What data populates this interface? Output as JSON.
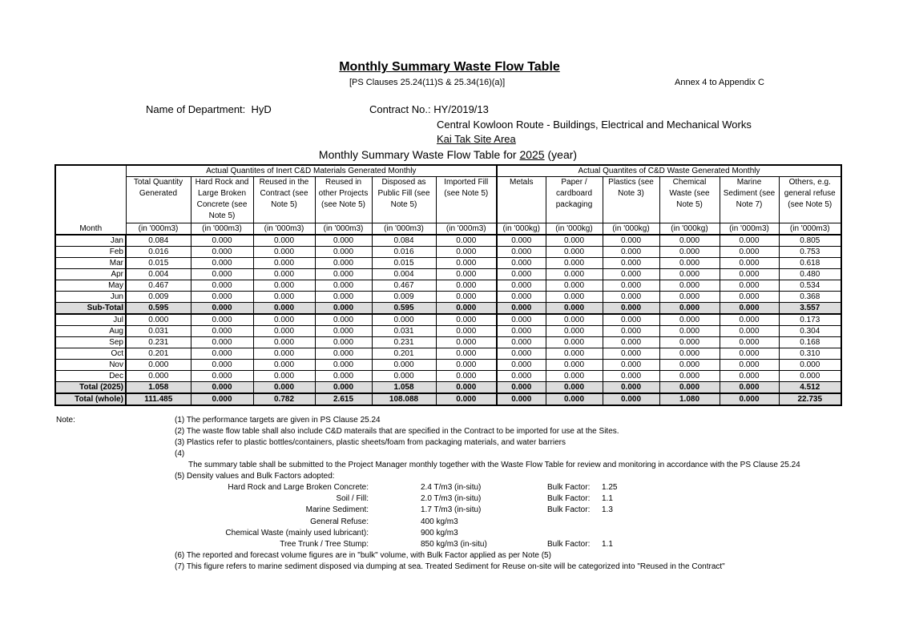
{
  "header": {
    "title": "Monthly Summary Waste Flow Table",
    "clauses": "[PS Clauses 25.24(11)S & 25.34(16)(a)]",
    "annex": "Annex 4 to Appendix C",
    "department_label": "Name of Department:",
    "department": "HyD",
    "contract_label": "Contract No.:",
    "contract_no": "HY/2019/13",
    "contract_name": "Central Kowloon Route - Buildings, Electrical and Mechanical Works",
    "site": "Kai Tak Site Area",
    "table_title_prefix": "Monthly Summary Waste Flow Table for",
    "year": "2025",
    "table_title_suffix": "(year)"
  },
  "table": {
    "group_inert": "Actual Quantites of Inert C&D Materials Generated Monthly",
    "group_waste": "Actual Quantites of C&D Waste Generated Monthly",
    "month_header": "Month",
    "columns": [
      {
        "label": "Total Quantity Generated",
        "unit": "(in '000m3)"
      },
      {
        "label": "Hard Rock and Large Broken Concrete (see Note 5)",
        "unit": "(in '000m3)"
      },
      {
        "label": "Reused in the Contract (see Note 5)",
        "unit": "(in '000m3)"
      },
      {
        "label": "Reused in other Projects (see Note 5)",
        "unit": "(in '000m3)"
      },
      {
        "label": "Disposed as Public Fill (see Note 5)",
        "unit": "(in '000m3)"
      },
      {
        "label": "Imported Fill (see Note 5)",
        "unit": "(in '000m3)"
      },
      {
        "label": "Metals",
        "unit": "(in '000kg)"
      },
      {
        "label": "Paper / cardboard packaging",
        "unit": "(in '000kg)"
      },
      {
        "label": "Plastics (see Note 3)",
        "unit": "(in '000kg)"
      },
      {
        "label": "Chemical Waste (see Note 5)",
        "unit": "(in '000kg)"
      },
      {
        "label": "Marine Sediment (see Note 7)",
        "unit": "(in '000m3)"
      },
      {
        "label": "Others, e.g. general refuse (see Note 5)",
        "unit": "(in '000m3)"
      }
    ],
    "rows": [
      {
        "month": "Jan",
        "values": [
          "0.084",
          "0.000",
          "0.000",
          "0.000",
          "0.084",
          "0.000",
          "0.000",
          "0.000",
          "0.000",
          "0.000",
          "0.000",
          "0.805"
        ]
      },
      {
        "month": "Feb",
        "values": [
          "0.016",
          "0.000",
          "0.000",
          "0.000",
          "0.016",
          "0.000",
          "0.000",
          "0.000",
          "0.000",
          "0.000",
          "0.000",
          "0.753"
        ]
      },
      {
        "month": "Mar",
        "values": [
          "0.015",
          "0.000",
          "0.000",
          "0.000",
          "0.015",
          "0.000",
          "0.000",
          "0.000",
          "0.000",
          "0.000",
          "0.000",
          "0.618"
        ]
      },
      {
        "month": "Apr",
        "values": [
          "0.004",
          "0.000",
          "0.000",
          "0.000",
          "0.004",
          "0.000",
          "0.000",
          "0.000",
          "0.000",
          "0.000",
          "0.000",
          "0.480"
        ]
      },
      {
        "month": "May",
        "values": [
          "0.467",
          "0.000",
          "0.000",
          "0.000",
          "0.467",
          "0.000",
          "0.000",
          "0.000",
          "0.000",
          "0.000",
          "0.000",
          "0.534"
        ]
      },
      {
        "month": "Jun",
        "values": [
          "0.009",
          "0.000",
          "0.000",
          "0.000",
          "0.009",
          "0.000",
          "0.000",
          "0.000",
          "0.000",
          "0.000",
          "0.000",
          "0.368"
        ]
      },
      {
        "month": "Sub-Total",
        "bold": true,
        "values": [
          "0.595",
          "0.000",
          "0.000",
          "0.000",
          "0.595",
          "0.000",
          "0.000",
          "0.000",
          "0.000",
          "0.000",
          "0.000",
          "3.557"
        ]
      },
      {
        "month": "Jul",
        "thick": true,
        "values": [
          "0.000",
          "0.000",
          "0.000",
          "0.000",
          "0.000",
          "0.000",
          "0.000",
          "0.000",
          "0.000",
          "0.000",
          "0.000",
          "0.173"
        ]
      },
      {
        "month": "Aug",
        "values": [
          "0.031",
          "0.000",
          "0.000",
          "0.000",
          "0.031",
          "0.000",
          "0.000",
          "0.000",
          "0.000",
          "0.000",
          "0.000",
          "0.304"
        ]
      },
      {
        "month": "Sep",
        "values": [
          "0.231",
          "0.000",
          "0.000",
          "0.000",
          "0.231",
          "0.000",
          "0.000",
          "0.000",
          "0.000",
          "0.000",
          "0.000",
          "0.168"
        ]
      },
      {
        "month": "Oct",
        "values": [
          "0.201",
          "0.000",
          "0.000",
          "0.000",
          "0.201",
          "0.000",
          "0.000",
          "0.000",
          "0.000",
          "0.000",
          "0.000",
          "0.310"
        ]
      },
      {
        "month": "Nov",
        "values": [
          "0.000",
          "0.000",
          "0.000",
          "0.000",
          "0.000",
          "0.000",
          "0.000",
          "0.000",
          "0.000",
          "0.000",
          "0.000",
          "0.000"
        ]
      },
      {
        "month": "Dec",
        "values": [
          "0.000",
          "0.000",
          "0.000",
          "0.000",
          "0.000",
          "0.000",
          "0.000",
          "0.000",
          "0.000",
          "0.000",
          "0.000",
          "0.000"
        ]
      },
      {
        "month": "Total (2025)",
        "bold": true,
        "values": [
          "1.058",
          "0.000",
          "0.000",
          "0.000",
          "1.058",
          "0.000",
          "0.000",
          "0.000",
          "0.000",
          "0.000",
          "0.000",
          "4.512"
        ]
      },
      {
        "month": "Total (whole)",
        "bold": true,
        "thick": true,
        "values": [
          "111.485",
          "0.000",
          "0.782",
          "2.615",
          "108.088",
          "0.000",
          "0.000",
          "0.000",
          "0.000",
          "1.080",
          "0.000",
          "22.735"
        ]
      }
    ]
  },
  "notes": {
    "label": "Note:",
    "n1": "(1)  The performance targets are given in PS Clause 25.24",
    "n2": "(2)  The waste flow table shall also include C&D materails that are specified in the Contract to be imported for use at the Sites.",
    "n3": "(3)  Plastics refer to plastic bottles/containers, plastic sheets/foam from packaging materials, and water barriers",
    "n4": "(4)",
    "n4_text": "The summary table shall be submitted to the Project Manager monthly together with the Waste Flow Table for review and monitoring in accordance with the PS Clause 25.24",
    "n5": "(5)  Density values and Bulk Factors adopted:",
    "density": [
      {
        "material": "Hard Rock and Large Broken Concrete:",
        "value": "2.4  T/m3 (in-situ)",
        "bulk_label": "Bulk Factor:",
        "bulk": "1.25"
      },
      {
        "material": "Soil / Fill:",
        "value": "2.0  T/m3 (in-situ)",
        "bulk_label": "Bulk Factor:",
        "bulk": "1.1"
      },
      {
        "material": "Marine Sediment:",
        "value": "1.7  T/m3 (in-situ)",
        "bulk_label": "Bulk Factor:",
        "bulk": "1.3"
      },
      {
        "material": "General Refuse:",
        "value": "400  kg/m3",
        "bulk_label": "",
        "bulk": ""
      },
      {
        "material": "Chemical Waste (mainly used lubricant):",
        "value": "900  kg/m3",
        "bulk_label": "",
        "bulk": ""
      },
      {
        "material": "Tree Trunk / Tree Stump:",
        "value": "850  kg/m3 (in-situ)",
        "bulk_label": "Bulk Factor:",
        "bulk": "1.1"
      }
    ],
    "n6": "(6)  The reported and forecast volume figures are in \"bulk\" volume, with Bulk Factor applied as per Note (5)",
    "n7": "(7)  This figure refers to marine sediment disposed via dumping at sea. Treated Sediment for Reuse on-site will be categorized into \"Reused in the Contract\""
  }
}
